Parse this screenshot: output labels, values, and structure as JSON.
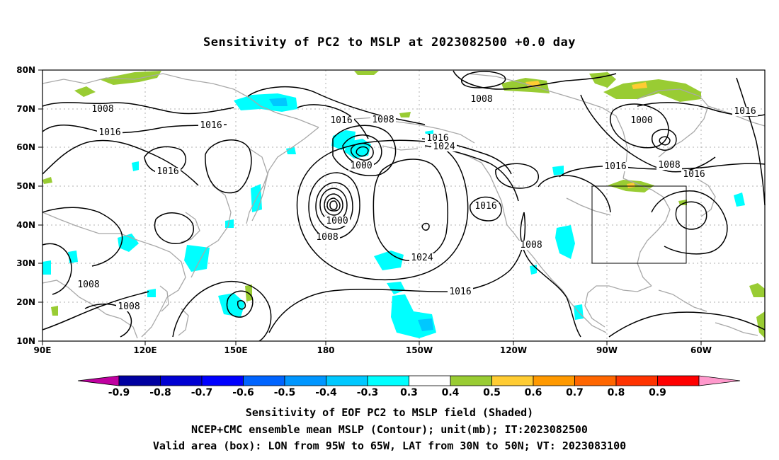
{
  "title": "Sensitivity of PC2 to MSLP at 2023082500 +0.0 day",
  "map": {
    "lat_labels": [
      "80N",
      "70N",
      "60N",
      "50N",
      "40N",
      "30N",
      "20N",
      "10N"
    ],
    "lon_labels": [
      "90E",
      "120E",
      "150E",
      "180",
      "150W",
      "120W",
      "90W",
      "60W"
    ],
    "valid_box": {
      "lon_from": "95W",
      "lon_to": "65W",
      "lat_from": "30N",
      "lat_to": "50N"
    },
    "contour_labels": [
      "1008",
      "1016",
      "1016",
      "1016",
      "1008",
      "1008",
      "1016",
      "1008",
      "1016",
      "1024",
      "1000",
      "1000",
      "1008",
      "1024",
      "1016",
      "1016",
      "1008",
      "1008",
      "1000",
      "1016",
      "1008",
      "1016",
      "1016"
    ],
    "colors": {
      "land_outline": "#a8a8a8",
      "contour": "#000000",
      "grid": "#b0b0b0",
      "neg_shade": "#00ffff",
      "neg_shade_dark": "#00c8ff",
      "pos_shade": "#99cc33",
      "pos_shade_light": "#ffcc33"
    }
  },
  "colorbar": {
    "labels": [
      "-0.9",
      "-0.8",
      "-0.7",
      "-0.6",
      "-0.5",
      "-0.4",
      "-0.3",
      "0.3",
      "0.4",
      "0.5",
      "0.6",
      "0.7",
      "0.8",
      "0.9"
    ],
    "colors": [
      "#0000a0",
      "#0000d2",
      "#0000ff",
      "#0064ff",
      "#0096ff",
      "#00c8ff",
      "#00ffff",
      "#ffffff",
      "#99cc33",
      "#ffcc33",
      "#ff9900",
      "#ff6600",
      "#ff3300",
      "#ff0000"
    ],
    "low_end_color": "#c000a0",
    "high_end_color": "#ff99cc"
  },
  "caption": {
    "line1": "Sensitivity of EOF PC2 to MSLP field (Shaded)",
    "line2": "NCEP+CMC ensemble mean MSLP (Contour); unit(mb); IT:2023082500",
    "line3": "Valid area (box): LON from 95W to 65W, LAT from 30N to 50N; VT: 2023083100"
  }
}
